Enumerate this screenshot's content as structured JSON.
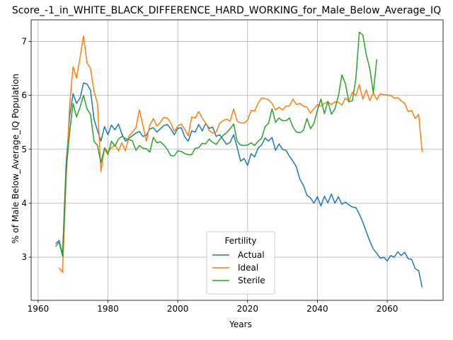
{
  "chart_data": {
    "type": "line",
    "title": "Score_-1_in_WHITE_BLACK_DIFFERENCE_HARD_WORKING_for_Male_Below_Average_IQ",
    "xlabel": "Years",
    "ylabel": "% of Male Below_Average_IQ Population",
    "xlim": [
      1958,
      2076
    ],
    "ylim": [
      2.2,
      7.4
    ],
    "xticks": [
      1960,
      1980,
      2000,
      2020,
      2040,
      2060
    ],
    "yticks": [
      3,
      4,
      5,
      6,
      7
    ],
    "grid": true,
    "legend": {
      "title": "Fertility",
      "placement": "lower-center"
    },
    "series": [
      {
        "name": "Actual",
        "color": "#1f77b4",
        "points": [
          [
            1965,
            3.25
          ],
          [
            1966,
            3.31
          ],
          [
            1967,
            3.05
          ],
          [
            1968,
            4.7
          ],
          [
            1969,
            5.6
          ],
          [
            1970,
            6.03
          ],
          [
            1971,
            5.85
          ],
          [
            1972,
            5.95
          ],
          [
            1973,
            6.23
          ],
          [
            1974,
            6.21
          ],
          [
            1975,
            6.1
          ],
          [
            1976,
            5.56
          ],
          [
            1977,
            5.35
          ],
          [
            1978,
            5.15
          ],
          [
            1979,
            5.42
          ],
          [
            1980,
            5.27
          ],
          [
            1981,
            5.45
          ],
          [
            1982,
            5.36
          ],
          [
            1983,
            5.47
          ],
          [
            1984,
            5.28
          ],
          [
            1985,
            5.15
          ],
          [
            1986,
            5.2
          ],
          [
            1987,
            5.25
          ],
          [
            1988,
            5.3
          ],
          [
            1989,
            5.33
          ],
          [
            1990,
            5.24
          ],
          [
            1991,
            5.26
          ],
          [
            1992,
            5.38
          ],
          [
            1993,
            5.4
          ],
          [
            1994,
            5.32
          ],
          [
            1995,
            5.38
          ],
          [
            1996,
            5.44
          ],
          [
            1997,
            5.46
          ],
          [
            1998,
            5.38
          ],
          [
            1999,
            5.27
          ],
          [
            2000,
            5.39
          ],
          [
            2001,
            5.4
          ],
          [
            2002,
            5.23
          ],
          [
            2003,
            5.15
          ],
          [
            2004,
            5.34
          ],
          [
            2005,
            5.32
          ],
          [
            2006,
            5.46
          ],
          [
            2007,
            5.34
          ],
          [
            2008,
            5.48
          ],
          [
            2009,
            5.39
          ],
          [
            2010,
            5.41
          ],
          [
            2011,
            5.24
          ],
          [
            2012,
            5.27
          ],
          [
            2013,
            5.18
          ],
          [
            2014,
            5.09
          ],
          [
            2015,
            5.13
          ],
          [
            2016,
            5.27
          ],
          [
            2017,
            5.04
          ],
          [
            2018,
            4.78
          ],
          [
            2019,
            4.83
          ],
          [
            2020,
            4.7
          ],
          [
            2021,
            4.92
          ],
          [
            2022,
            4.86
          ],
          [
            2023,
            5.02
          ],
          [
            2024,
            5.08
          ],
          [
            2025,
            5.21
          ],
          [
            2026,
            5.15
          ],
          [
            2027,
            5.22
          ],
          [
            2028,
            4.98
          ],
          [
            2029,
            5.1
          ],
          [
            2030,
            5.0
          ],
          [
            2031,
            4.98
          ],
          [
            2032,
            4.87
          ],
          [
            2033,
            4.78
          ],
          [
            2034,
            4.67
          ],
          [
            2035,
            4.44
          ],
          [
            2036,
            4.33
          ],
          [
            2037,
            4.15
          ],
          [
            2038,
            4.1
          ],
          [
            2039,
            4.0
          ],
          [
            2040,
            4.12
          ],
          [
            2041,
            3.95
          ],
          [
            2042,
            4.13
          ],
          [
            2043,
            4.01
          ],
          [
            2044,
            4.17
          ],
          [
            2045,
            4.0
          ],
          [
            2046,
            4.12
          ],
          [
            2047,
            3.98
          ],
          [
            2048,
            4.02
          ],
          [
            2049,
            3.97
          ],
          [
            2050,
            3.93
          ],
          [
            2051,
            3.92
          ],
          [
            2052,
            3.8
          ],
          [
            2053,
            3.65
          ],
          [
            2054,
            3.47
          ],
          [
            2055,
            3.3
          ],
          [
            2056,
            3.15
          ],
          [
            2057,
            3.07
          ],
          [
            2058,
            2.98
          ],
          [
            2059,
            3.0
          ],
          [
            2060,
            2.93
          ],
          [
            2061,
            3.03
          ],
          [
            2062,
            3.0
          ],
          [
            2063,
            3.1
          ],
          [
            2064,
            3.03
          ],
          [
            2065,
            3.09
          ],
          [
            2066,
            2.97
          ],
          [
            2067,
            2.96
          ],
          [
            2068,
            2.79
          ],
          [
            2069,
            2.75
          ],
          [
            2070,
            2.44
          ]
        ]
      },
      {
        "name": "Ideal",
        "color": "#ff7f0e",
        "points": [
          [
            1966,
            2.8
          ],
          [
            1967,
            2.72
          ],
          [
            1968,
            4.4
          ],
          [
            1969,
            5.8
          ],
          [
            1970,
            6.53
          ],
          [
            1971,
            6.32
          ],
          [
            1972,
            6.7
          ],
          [
            1973,
            7.1
          ],
          [
            1974,
            6.6
          ],
          [
            1975,
            6.5
          ],
          [
            1976,
            6.08
          ],
          [
            1977,
            5.85
          ],
          [
            1978,
            4.59
          ],
          [
            1979,
            5.03
          ],
          [
            1980,
            4.95
          ],
          [
            1981,
            5.03
          ],
          [
            1982,
            5.08
          ],
          [
            1983,
            4.97
          ],
          [
            1984,
            5.12
          ],
          [
            1985,
            4.97
          ],
          [
            1986,
            5.24
          ],
          [
            1987,
            5.32
          ],
          [
            1988,
            5.4
          ],
          [
            1989,
            5.73
          ],
          [
            1990,
            5.45
          ],
          [
            1991,
            5.15
          ],
          [
            1992,
            5.45
          ],
          [
            1993,
            5.57
          ],
          [
            1994,
            5.43
          ],
          [
            1995,
            5.5
          ],
          [
            1996,
            5.59
          ],
          [
            1997,
            5.58
          ],
          [
            1998,
            5.49
          ],
          [
            1999,
            5.33
          ],
          [
            2000,
            5.43
          ],
          [
            2001,
            5.47
          ],
          [
            2002,
            5.37
          ],
          [
            2003,
            5.25
          ],
          [
            2004,
            5.6
          ],
          [
            2005,
            5.58
          ],
          [
            2006,
            5.7
          ],
          [
            2007,
            5.58
          ],
          [
            2008,
            5.49
          ],
          [
            2009,
            5.35
          ],
          [
            2010,
            5.3
          ],
          [
            2011,
            5.32
          ],
          [
            2012,
            5.48
          ],
          [
            2013,
            5.53
          ],
          [
            2014,
            5.56
          ],
          [
            2015,
            5.52
          ],
          [
            2016,
            5.75
          ],
          [
            2017,
            5.52
          ],
          [
            2018,
            5.49
          ],
          [
            2019,
            5.49
          ],
          [
            2020,
            5.54
          ],
          [
            2021,
            5.72
          ],
          [
            2022,
            5.71
          ],
          [
            2023,
            5.85
          ],
          [
            2024,
            5.95
          ],
          [
            2025,
            5.94
          ],
          [
            2026,
            5.92
          ],
          [
            2027,
            5.85
          ],
          [
            2028,
            5.73
          ],
          [
            2029,
            5.78
          ],
          [
            2030,
            5.73
          ],
          [
            2031,
            5.8
          ],
          [
            2032,
            5.8
          ],
          [
            2033,
            5.93
          ],
          [
            2034,
            5.83
          ],
          [
            2035,
            5.85
          ],
          [
            2036,
            5.8
          ],
          [
            2037,
            5.78
          ],
          [
            2038,
            5.67
          ],
          [
            2039,
            5.75
          ],
          [
            2040,
            5.83
          ],
          [
            2041,
            5.8
          ],
          [
            2042,
            5.85
          ],
          [
            2043,
            5.88
          ],
          [
            2044,
            5.83
          ],
          [
            2045,
            5.88
          ],
          [
            2046,
            5.87
          ],
          [
            2047,
            5.82
          ],
          [
            2048,
            5.95
          ],
          [
            2049,
            5.89
          ],
          [
            2050,
            6.06
          ],
          [
            2051,
            5.99
          ],
          [
            2052,
            6.2
          ],
          [
            2053,
            5.93
          ],
          [
            2054,
            6.1
          ],
          [
            2055,
            5.9
          ],
          [
            2056,
            6.05
          ],
          [
            2057,
            5.92
          ],
          [
            2058,
            6.03
          ],
          [
            2059,
            6.01
          ],
          [
            2060,
            6.01
          ],
          [
            2061,
            6.0
          ],
          [
            2062,
            5.95
          ],
          [
            2063,
            5.96
          ],
          [
            2064,
            5.9
          ],
          [
            2065,
            5.85
          ],
          [
            2066,
            5.7
          ],
          [
            2067,
            5.72
          ],
          [
            2068,
            5.57
          ],
          [
            2069,
            5.65
          ],
          [
            2070,
            4.95
          ]
        ]
      },
      {
        "name": "Sterile",
        "color": "#2ca02c",
        "points": [
          [
            1965,
            3.2
          ],
          [
            1966,
            3.28
          ],
          [
            1967,
            3.02
          ],
          [
            1968,
            4.58
          ],
          [
            1969,
            5.3
          ],
          [
            1970,
            5.85
          ],
          [
            1971,
            5.6
          ],
          [
            1972,
            5.78
          ],
          [
            1973,
            6.0
          ],
          [
            1974,
            5.75
          ],
          [
            1975,
            5.65
          ],
          [
            1976,
            5.15
          ],
          [
            1977,
            5.07
          ],
          [
            1978,
            4.75
          ],
          [
            1979,
            5.02
          ],
          [
            1980,
            4.9
          ],
          [
            1981,
            5.15
          ],
          [
            1982,
            5.06
          ],
          [
            1983,
            5.19
          ],
          [
            1984,
            5.24
          ],
          [
            1985,
            5.2
          ],
          [
            1986,
            5.18
          ],
          [
            1987,
            5.16
          ],
          [
            1988,
            4.98
          ],
          [
            1989,
            5.07
          ],
          [
            1990,
            5.02
          ],
          [
            1991,
            5.01
          ],
          [
            1992,
            4.95
          ],
          [
            1993,
            5.22
          ],
          [
            1994,
            5.12
          ],
          [
            1995,
            5.14
          ],
          [
            1996,
            5.08
          ],
          [
            1997,
            5.0
          ],
          [
            1998,
            4.88
          ],
          [
            1999,
            4.88
          ],
          [
            2000,
            4.97
          ],
          [
            2001,
            4.96
          ],
          [
            2002,
            4.92
          ],
          [
            2003,
            4.9
          ],
          [
            2004,
            4.9
          ],
          [
            2005,
            5.02
          ],
          [
            2006,
            5.03
          ],
          [
            2007,
            5.11
          ],
          [
            2008,
            5.1
          ],
          [
            2009,
            5.19
          ],
          [
            2010,
            5.13
          ],
          [
            2011,
            5.09
          ],
          [
            2012,
            5.18
          ],
          [
            2013,
            5.26
          ],
          [
            2014,
            5.31
          ],
          [
            2015,
            5.38
          ],
          [
            2016,
            5.47
          ],
          [
            2017,
            5.15
          ],
          [
            2018,
            5.08
          ],
          [
            2019,
            5.07
          ],
          [
            2020,
            5.08
          ],
          [
            2021,
            5.12
          ],
          [
            2022,
            5.07
          ],
          [
            2023,
            5.15
          ],
          [
            2024,
            5.2
          ],
          [
            2025,
            5.42
          ],
          [
            2026,
            5.48
          ],
          [
            2027,
            5.75
          ],
          [
            2028,
            5.5
          ],
          [
            2029,
            5.58
          ],
          [
            2030,
            5.53
          ],
          [
            2031,
            5.53
          ],
          [
            2032,
            5.58
          ],
          [
            2033,
            5.41
          ],
          [
            2034,
            5.32
          ],
          [
            2035,
            5.31
          ],
          [
            2036,
            5.35
          ],
          [
            2037,
            5.57
          ],
          [
            2038,
            5.38
          ],
          [
            2039,
            5.48
          ],
          [
            2040,
            5.72
          ],
          [
            2041,
            5.93
          ],
          [
            2042,
            5.66
          ],
          [
            2043,
            5.89
          ],
          [
            2044,
            5.65
          ],
          [
            2045,
            5.75
          ],
          [
            2046,
            5.98
          ],
          [
            2047,
            6.38
          ],
          [
            2048,
            6.22
          ],
          [
            2049,
            5.88
          ],
          [
            2050,
            5.9
          ],
          [
            2051,
            6.3
          ],
          [
            2052,
            7.17
          ],
          [
            2053,
            7.12
          ],
          [
            2054,
            6.75
          ],
          [
            2055,
            6.5
          ],
          [
            2056,
            6.05
          ],
          [
            2057,
            6.67
          ]
        ]
      }
    ]
  }
}
